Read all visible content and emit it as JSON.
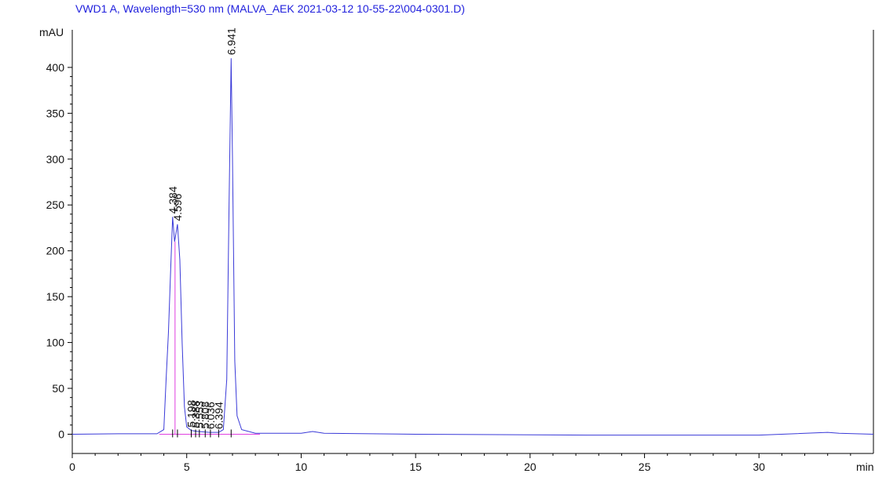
{
  "chart_data": {
    "type": "line",
    "title": "VWD1 A, Wavelength=530 nm (MALVA_AEK 2021-03-12 10-55-22\\004-0301.D)",
    "y_label": "mAU",
    "x_label": "min",
    "xlim": [
      0,
      35
    ],
    "xticks": [
      0,
      5,
      10,
      15,
      20,
      25,
      30
    ],
    "ylim": [
      -21,
      441
    ],
    "yticks": [
      0,
      50,
      100,
      150,
      200,
      250,
      300,
      350,
      400
    ],
    "series": [
      {
        "color": "#3a3ad8",
        "x": [
          0,
          2,
          3.7,
          4.0,
          4.1,
          4.2,
          4.3,
          4.384,
          4.47,
          4.596,
          4.7,
          4.8,
          4.9,
          5.0,
          5.2,
          5.5,
          6.0,
          6.4,
          6.6,
          6.75,
          6.85,
          6.941,
          7.0,
          7.1,
          7.2,
          7.4,
          8,
          10,
          10.5,
          11,
          15,
          22.5,
          25,
          30,
          33,
          33.5,
          35
        ],
        "values": [
          0,
          0.5,
          0.5,
          5,
          60,
          110,
          180,
          237,
          210,
          229,
          190,
          100,
          30,
          8,
          4,
          3,
          2,
          2,
          5,
          60,
          250,
          410,
          300,
          80,
          20,
          5,
          1,
          1,
          3,
          1,
          0,
          -1,
          -1,
          -1,
          2,
          1,
          0
        ]
      }
    ],
    "baseline": {
      "color": "#e040e0",
      "x": [
        3.8,
        8.2
      ],
      "values": [
        0,
        0
      ]
    },
    "drop_lines": {
      "color": "#e040e0",
      "x": [
        4.49
      ],
      "values": [
        210
      ]
    },
    "peak_labels": [
      4.384,
      4.596,
      5.198,
      5.388,
      5.553,
      5.808,
      6.036,
      6.394,
      6.941
    ]
  }
}
